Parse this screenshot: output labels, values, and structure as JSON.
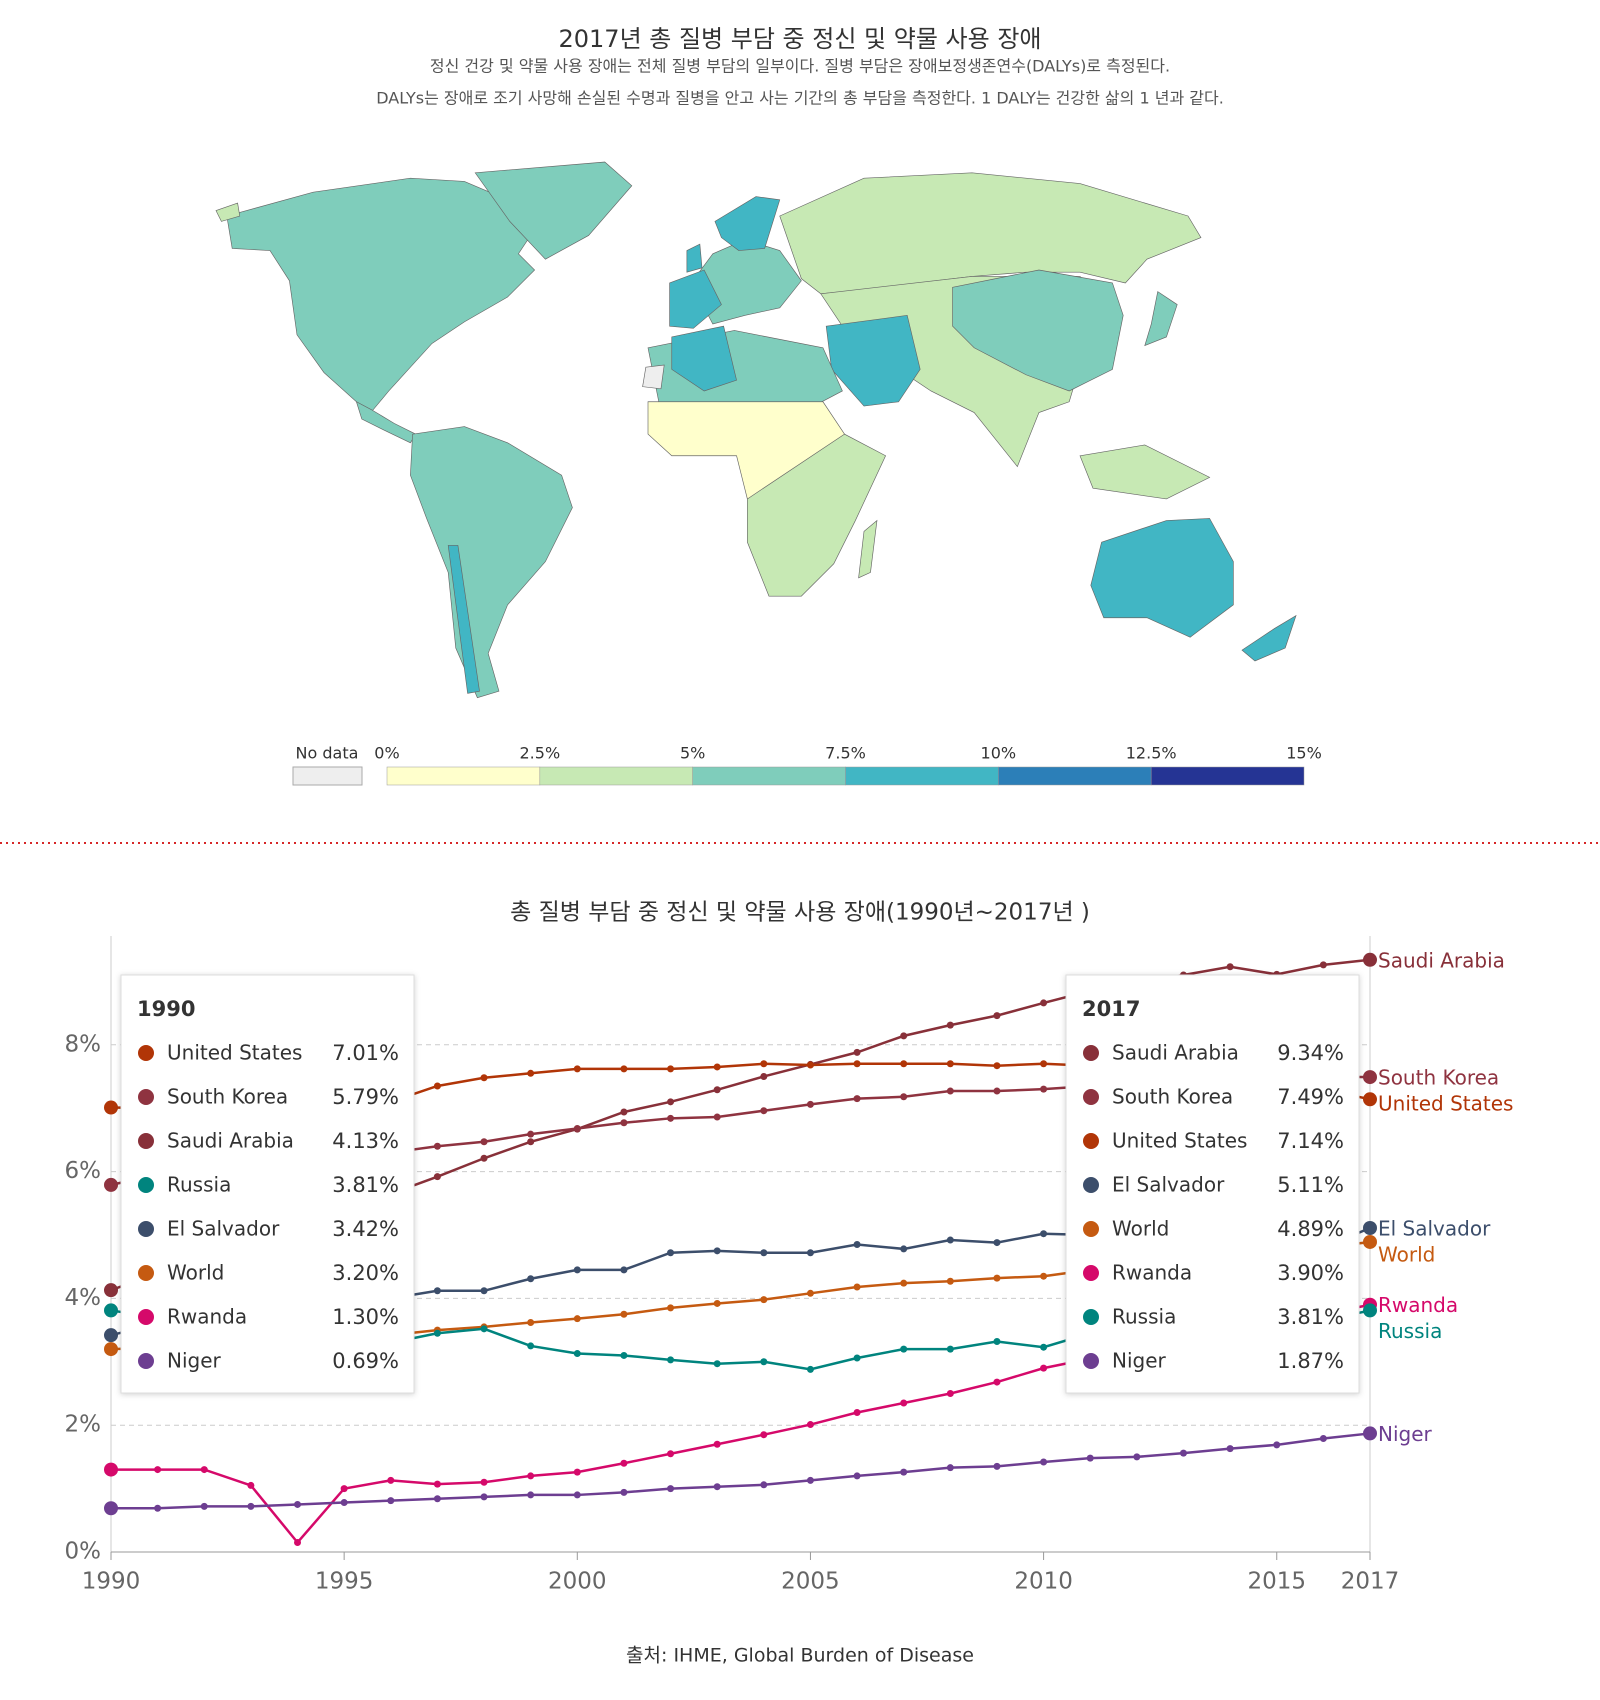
{
  "chart_data": [
    {
      "type": "map",
      "title": "2017년 총 질병 부담 중 정신 및 약물 사용 장애",
      "subtitle": [
        "정신 건강 및 약물 사용 장애는 전체 질병 부담의 일부이다. 질병 부담은 장애보정생존연수(DALYs)로 측정된다.",
        "DALYs는 장애로 조기 사망해 손실된 수명과 질병을 안고 사는 기간의 총 부담을 측정한다. 1 DALY는 건강한 삶의 1 년과 같다."
      ],
      "legend": {
        "no_data_label": "No data",
        "no_data_color": "#eeeeee",
        "ticks": [
          {
            "value": 0,
            "label": "0%"
          },
          {
            "value": 2.5,
            "label": "2.5%"
          },
          {
            "value": 5,
            "label": "5%"
          },
          {
            "value": 7.5,
            "label": "7.5%"
          },
          {
            "value": 10,
            "label": "10%"
          },
          {
            "value": 12.5,
            "label": "12.5%"
          },
          {
            "value": 15,
            "label": "15%"
          }
        ],
        "colors": [
          "#ffffcc",
          "#c7e9b4",
          "#7fcdbb",
          "#41b6c4",
          "#2c7fb8",
          "#253494"
        ]
      }
    },
    {
      "type": "line",
      "title": "총 질병 부담 중 정신 및 약물 사용 장애(1990년~2017년 )",
      "source": "출처: IHME, Global Burden of Disease",
      "x": [
        1990,
        1991,
        1992,
        1993,
        1994,
        1995,
        1996,
        1997,
        1998,
        1999,
        2000,
        2001,
        2002,
        2003,
        2004,
        2005,
        2006,
        2007,
        2008,
        2009,
        2010,
        2011,
        2012,
        2013,
        2014,
        2015,
        2016,
        2017
      ],
      "xlim": [
        1990,
        2017
      ],
      "xticks": [
        1990,
        1995,
        2000,
        2005,
        2010,
        2015,
        2017
      ],
      "ylim": [
        0,
        9.4
      ],
      "yticks": [
        {
          "value": 0,
          "label": "0%"
        },
        {
          "value": 2,
          "label": "2%"
        },
        {
          "value": 4,
          "label": "4%"
        },
        {
          "value": 6,
          "label": "6%"
        },
        {
          "value": 8,
          "label": "8%"
        }
      ],
      "grid": true,
      "series": [
        {
          "name": "Saudi Arabia",
          "color": "#883039",
          "values": [
            4.13,
            4.4,
            4.65,
            4.9,
            5.15,
            5.4,
            5.65,
            5.92,
            6.21,
            6.47,
            6.67,
            6.94,
            7.1,
            7.29,
            7.5,
            7.69,
            7.88,
            8.14,
            8.31,
            8.46,
            8.66,
            8.85,
            8.99,
            9.1,
            9.23,
            9.11,
            9.26,
            9.34
          ]
        },
        {
          "name": "South Korea",
          "color": "#8f3340",
          "values": [
            5.79,
            5.95,
            6.05,
            6.1,
            6.15,
            6.2,
            6.3,
            6.4,
            6.47,
            6.59,
            6.68,
            6.77,
            6.84,
            6.86,
            6.96,
            7.06,
            7.15,
            7.18,
            7.27,
            7.27,
            7.3,
            7.35,
            7.4,
            7.45,
            7.48,
            7.5,
            7.5,
            7.49
          ]
        },
        {
          "name": "United States",
          "color": "#b13507",
          "values": [
            7.01,
            7.0,
            7.0,
            7.0,
            7.0,
            7.0,
            7.1,
            7.35,
            7.48,
            7.55,
            7.62,
            7.62,
            7.62,
            7.65,
            7.7,
            7.68,
            7.7,
            7.7,
            7.7,
            7.67,
            7.7,
            7.67,
            7.6,
            7.55,
            7.5,
            7.4,
            7.3,
            7.14
          ]
        },
        {
          "name": "El Salvador",
          "color": "#3c4e6b",
          "values": [
            3.42,
            3.6,
            3.75,
            3.85,
            3.9,
            3.95,
            4.0,
            4.12,
            4.12,
            4.31,
            4.45,
            4.45,
            4.72,
            4.75,
            4.72,
            4.72,
            4.85,
            4.78,
            4.92,
            4.88,
            5.02,
            5.0,
            4.7,
            4.65,
            4.6,
            4.55,
            4.8,
            5.11
          ]
        },
        {
          "name": "World",
          "color": "#c55a11",
          "values": [
            3.2,
            3.22,
            3.25,
            3.28,
            3.3,
            3.35,
            3.42,
            3.5,
            3.55,
            3.62,
            3.68,
            3.75,
            3.85,
            3.92,
            3.98,
            4.08,
            4.18,
            4.24,
            4.27,
            4.32,
            4.35,
            4.45,
            4.55,
            4.6,
            4.65,
            4.7,
            4.8,
            4.89
          ]
        },
        {
          "name": "Rwanda",
          "color": "#d5096a",
          "values": [
            1.3,
            1.3,
            1.3,
            1.05,
            0.15,
            1.0,
            1.13,
            1.07,
            1.1,
            1.2,
            1.26,
            1.4,
            1.55,
            1.7,
            1.85,
            2.01,
            2.2,
            2.35,
            2.5,
            2.68,
            2.9,
            3.05,
            3.2,
            3.4,
            3.55,
            3.65,
            3.75,
            3.9
          ]
        },
        {
          "name": "Russia",
          "color": "#00847e",
          "values": [
            3.81,
            3.7,
            3.65,
            3.1,
            2.95,
            3.1,
            3.3,
            3.45,
            3.52,
            3.25,
            3.13,
            3.1,
            3.03,
            2.97,
            3.0,
            2.88,
            3.06,
            3.2,
            3.2,
            3.32,
            3.23,
            3.45,
            3.55,
            3.6,
            3.58,
            3.62,
            3.65,
            3.81
          ]
        },
        {
          "name": "Niger",
          "color": "#6d3e91",
          "values": [
            0.69,
            0.69,
            0.72,
            0.72,
            0.75,
            0.78,
            0.81,
            0.84,
            0.87,
            0.9,
            0.9,
            0.94,
            1.0,
            1.03,
            1.06,
            1.13,
            1.2,
            1.26,
            1.33,
            1.35,
            1.42,
            1.48,
            1.5,
            1.56,
            1.63,
            1.69,
            1.79,
            1.87
          ]
        }
      ],
      "tooltips": [
        {
          "title": "1990",
          "rows": [
            {
              "name": "United States",
              "value": 7.01,
              "label": "7.01%"
            },
            {
              "name": "South Korea",
              "value": 5.79,
              "label": "5.79%"
            },
            {
              "name": "Saudi Arabia",
              "value": 4.13,
              "label": "4.13%"
            },
            {
              "name": "Russia",
              "value": 3.81,
              "label": "3.81%"
            },
            {
              "name": "El Salvador",
              "value": 3.42,
              "label": "3.42%"
            },
            {
              "name": "World",
              "value": 3.2,
              "label": "3.20%"
            },
            {
              "name": "Rwanda",
              "value": 1.3,
              "label": "1.30%"
            },
            {
              "name": "Niger",
              "value": 0.69,
              "label": "0.69%"
            }
          ]
        },
        {
          "title": "2017",
          "rows": [
            {
              "name": "Saudi Arabia",
              "value": 9.34,
              "label": "9.34%"
            },
            {
              "name": "South Korea",
              "value": 7.49,
              "label": "7.49%"
            },
            {
              "name": "United States",
              "value": 7.14,
              "label": "7.14%"
            },
            {
              "name": "El Salvador",
              "value": 5.11,
              "label": "5.11%"
            },
            {
              "name": "World",
              "value": 4.89,
              "label": "4.89%"
            },
            {
              "name": "Rwanda",
              "value": 3.9,
              "label": "3.90%"
            },
            {
              "name": "Russia",
              "value": 3.81,
              "label": "3.81%"
            },
            {
              "name": "Niger",
              "value": 1.87,
              "label": "1.87%"
            }
          ]
        }
      ]
    }
  ]
}
